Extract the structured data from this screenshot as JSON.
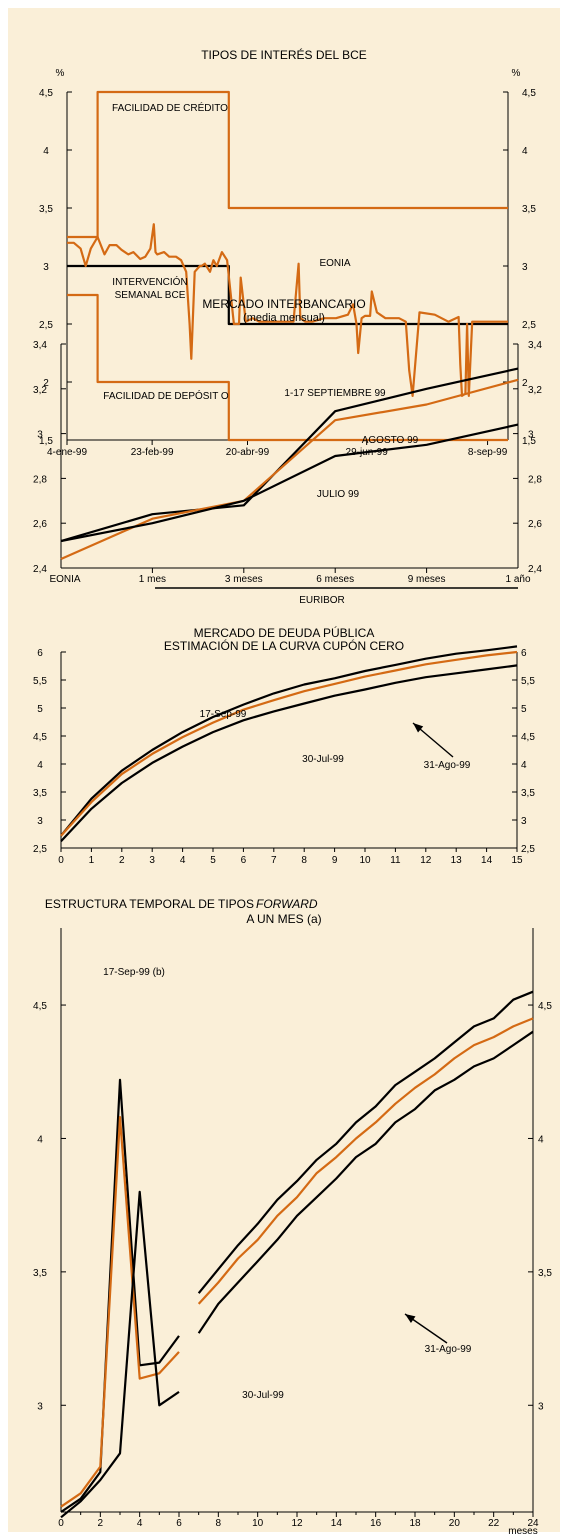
{
  "colors": {
    "background": "#faefd8",
    "orange": "#d46a14",
    "black": "#000000"
  },
  "chart_data": [
    {
      "type": "line",
      "title": "TIPOS DE INTERÉS DEL BCE",
      "y_unit_left": "%",
      "y_unit_right": "%",
      "ylim": [
        1.5,
        4.5
      ],
      "yticks": [
        "1,5",
        "2",
        "2,5",
        "3",
        "3,5",
        "4",
        "4,5"
      ],
      "xticks": [
        "4-ene-99",
        "23-feb-99",
        "20-abr-99",
        "29-jun-99",
        "8-sep-99"
      ],
      "xtick_dates": [
        "1999-01-04",
        "1999-02-23",
        "1999-04-20",
        "1999-06-29",
        "1999-09-08"
      ],
      "xlim": [
        "1999-01-04",
        "1999-09-20"
      ],
      "annotations": [
        "FACILIDAD DE CRÉDITO",
        "INTERVENCIÓN",
        "SEMANAL BCE",
        "EONIA",
        "FACILIDAD DE DEPÓSIT O"
      ],
      "series": [
        {
          "name": "FACILIDAD DE CRÉDITO",
          "color": "orange",
          "step": true,
          "x": [
            "1999-01-04",
            "1999-01-22",
            "1999-04-09",
            "1999-09-20"
          ],
          "y": [
            3.25,
            4.5,
            3.5,
            3.5
          ]
        },
        {
          "name": "INTERVENCIÓN SEMANAL BCE",
          "color": "black",
          "step": true,
          "x": [
            "1999-01-04",
            "1999-04-09",
            "1999-09-20"
          ],
          "y": [
            3.0,
            2.5,
            2.5
          ]
        },
        {
          "name": "FACILIDAD DE DEPÓSIT O",
          "color": "orange",
          "step": true,
          "x": [
            "1999-01-04",
            "1999-01-22",
            "1999-04-09",
            "1999-09-20"
          ],
          "y": [
            2.75,
            2.0,
            1.5,
            1.5
          ]
        },
        {
          "name": "EONIA",
          "color": "orange",
          "step": false,
          "x": [
            "1999-01-04",
            "1999-01-08",
            "1999-01-12",
            "1999-01-15",
            "1999-01-18",
            "1999-01-22",
            "1999-01-26",
            "1999-01-29",
            "1999-02-02",
            "1999-02-05",
            "1999-02-09",
            "1999-02-12",
            "1999-02-16",
            "1999-02-19",
            "1999-02-22",
            "1999-02-24",
            "1999-02-25",
            "1999-02-26",
            "1999-03-02",
            "1999-03-05",
            "1999-03-09",
            "1999-03-12",
            "1999-03-15",
            "1999-03-17",
            "1999-03-18",
            "1999-03-20",
            "1999-03-23",
            "1999-03-24",
            "1999-03-26",
            "1999-03-29",
            "1999-03-31",
            "1999-04-02",
            "1999-04-05",
            "1999-04-08",
            "1999-04-12",
            "1999-04-15",
            "1999-04-16",
            "1999-04-19",
            "1999-04-23",
            "1999-04-27",
            "1999-05-03",
            "1999-05-10",
            "1999-05-17",
            "1999-05-20",
            "1999-05-21",
            "1999-05-24",
            "1999-05-28",
            "1999-06-04",
            "1999-06-11",
            "1999-06-18",
            "1999-06-21",
            "1999-06-23",
            "1999-06-24",
            "1999-06-26",
            "1999-06-28",
            "1999-07-01",
            "1999-07-02",
            "1999-07-05",
            "1999-07-10",
            "1999-07-18",
            "1999-07-22",
            "1999-07-24",
            "1999-07-26",
            "1999-07-30",
            "1999-08-08",
            "1999-08-16",
            "1999-08-22",
            "1999-08-23",
            "1999-08-24",
            "1999-08-26",
            "1999-08-27",
            "1999-08-28",
            "1999-08-30",
            "1999-09-04",
            "1999-09-12",
            "1999-09-20"
          ],
          "y": [
            3.2,
            3.2,
            3.15,
            3.0,
            3.15,
            3.25,
            3.1,
            3.18,
            3.18,
            3.14,
            3.1,
            3.12,
            3.06,
            3.08,
            3.15,
            3.36,
            3.12,
            3.1,
            3.12,
            3.08,
            3.08,
            3.05,
            2.95,
            2.5,
            2.2,
            2.95,
            3.0,
            3.0,
            3.02,
            2.95,
            3.05,
            3.0,
            3.12,
            3.05,
            2.5,
            2.5,
            2.9,
            2.52,
            2.55,
            2.52,
            2.52,
            2.52,
            2.52,
            3.02,
            2.55,
            2.52,
            2.52,
            2.55,
            2.55,
            2.58,
            2.67,
            2.5,
            2.25,
            2.55,
            2.57,
            2.57,
            2.78,
            2.6,
            2.55,
            2.55,
            2.52,
            2.1,
            1.88,
            2.6,
            2.58,
            2.52,
            2.56,
            2.15,
            1.88,
            1.9,
            2.5,
            1.88,
            2.52,
            2.52,
            2.52,
            2.52
          ]
        }
      ]
    },
    {
      "type": "line",
      "title": "MERCADO INTERBANCARIO",
      "subtitle": "(media mensual)",
      "categories": [
        "EONIA",
        "1 mes",
        "3 meses",
        "6 meses",
        "9 meses",
        "1 año"
      ],
      "group_label": "EURIBOR",
      "ylim": [
        2.4,
        3.4
      ],
      "yticks": [
        "2,4",
        "2,6",
        "2,8",
        "3",
        "3,2",
        "3,4"
      ],
      "series": [
        {
          "name": "1-17 SEPTIEMBRE 99",
          "color": "black",
          "values": [
            2.52,
            2.64,
            2.68,
            3.1,
            3.2,
            3.29
          ]
        },
        {
          "name": "AGOSTO 99",
          "color": "orange",
          "values": [
            2.44,
            2.62,
            2.7,
            3.06,
            3.13,
            3.24
          ]
        },
        {
          "name": "JULIO 99",
          "color": "black",
          "values": [
            2.52,
            2.6,
            2.7,
            2.9,
            2.95,
            3.04
          ]
        }
      ]
    },
    {
      "type": "line",
      "title": "MERCADO DE DEUDA PÚBLICA",
      "subtitle": "ESTIMACIÓN DE LA CURVA CUPÓN CERO",
      "x": [
        0,
        1,
        2,
        3,
        4,
        5,
        6,
        7,
        8,
        9,
        10,
        11,
        12,
        13,
        14,
        15
      ],
      "xlim": [
        0,
        15
      ],
      "ylim": [
        2.5,
        6
      ],
      "yticks": [
        "2,5",
        "3",
        "3,5",
        "4",
        "4,5",
        "5",
        "5,5",
        "6"
      ],
      "series": [
        {
          "name": "17-Sep-99",
          "color": "black",
          "values": [
            2.72,
            3.38,
            3.88,
            4.25,
            4.57,
            4.84,
            5.06,
            5.26,
            5.42,
            5.53,
            5.66,
            5.77,
            5.88,
            5.97,
            6.03,
            6.1
          ]
        },
        {
          "name": "31-Ago-99",
          "color": "orange",
          "values": [
            2.72,
            3.32,
            3.82,
            4.18,
            4.48,
            4.74,
            4.97,
            5.14,
            5.3,
            5.43,
            5.56,
            5.67,
            5.78,
            5.86,
            5.94,
            6.0
          ]
        },
        {
          "name": "30-Jul-99",
          "color": "black",
          "values": [
            2.62,
            3.2,
            3.66,
            4.02,
            4.31,
            4.57,
            4.78,
            4.94,
            5.08,
            5.22,
            5.33,
            5.45,
            5.55,
            5.62,
            5.69,
            5.76
          ]
        }
      ]
    },
    {
      "type": "line",
      "title_parts": [
        "ESTRUCTURA TEMPORAL DE TIPOS",
        "FORWARD"
      ],
      "subtitle": "A UN MES (a)",
      "xlim": [
        0,
        24
      ],
      "xticks": [
        "0",
        "2",
        "4",
        "6",
        "8",
        "10",
        "12",
        "14",
        "16",
        "18",
        "20",
        "22",
        "24"
      ],
      "xunit": "meses",
      "ylim": [
        2.6,
        4.8
      ],
      "yticks": [
        "3",
        "3,5",
        "4",
        "4,5"
      ],
      "series": [
        {
          "name": "17-Sep-99 (b)",
          "color": "black",
          "segments": [
            {
              "x": [
                0,
                1,
                2,
                3,
                4,
                5,
                6
              ],
              "y": [
                2.6,
                2.65,
                2.75,
                4.22,
                3.15,
                3.16,
                3.26
              ]
            },
            {
              "x": [
                7,
                8,
                9,
                10,
                11,
                12,
                13,
                14,
                15,
                16,
                17,
                18,
                19,
                20,
                21,
                22,
                23,
                24
              ],
              "y": [
                3.42,
                3.51,
                3.6,
                3.68,
                3.77,
                3.84,
                3.92,
                3.98,
                4.06,
                4.12,
                4.2,
                4.25,
                4.3,
                4.36,
                4.42,
                4.45,
                4.52,
                4.55
              ]
            }
          ]
        },
        {
          "name": "31-Ago-99",
          "color": "orange",
          "segments": [
            {
              "x": [
                0,
                1,
                2,
                3,
                4,
                5,
                6
              ],
              "y": [
                2.62,
                2.67,
                2.77,
                4.08,
                3.1,
                3.12,
                3.2
              ]
            },
            {
              "x": [
                7,
                8,
                9,
                10,
                11,
                12,
                13,
                14,
                15,
                16,
                17,
                18,
                19,
                20,
                21,
                22,
                23,
                24
              ],
              "y": [
                3.38,
                3.46,
                3.55,
                3.62,
                3.71,
                3.78,
                3.87,
                3.93,
                4.0,
                4.06,
                4.13,
                4.19,
                4.24,
                4.3,
                4.35,
                4.38,
                4.42,
                4.45
              ]
            }
          ]
        },
        {
          "name": "30-Jul-99",
          "color": "black",
          "segments": [
            {
              "x": [
                0,
                1,
                2,
                3,
                4,
                5,
                6
              ],
              "y": [
                2.58,
                2.64,
                2.72,
                2.82,
                3.8,
                3.0,
                3.05
              ]
            },
            {
              "x": [
                7,
                8,
                9,
                10,
                11,
                12,
                13,
                14,
                15,
                16,
                17,
                18,
                19,
                20,
                21,
                22,
                23,
                24
              ],
              "y": [
                3.27,
                3.38,
                3.46,
                3.54,
                3.62,
                3.71,
                3.78,
                3.85,
                3.93,
                3.98,
                4.06,
                4.11,
                4.18,
                4.22,
                4.27,
                4.3,
                4.35,
                4.4
              ]
            }
          ]
        }
      ]
    }
  ]
}
